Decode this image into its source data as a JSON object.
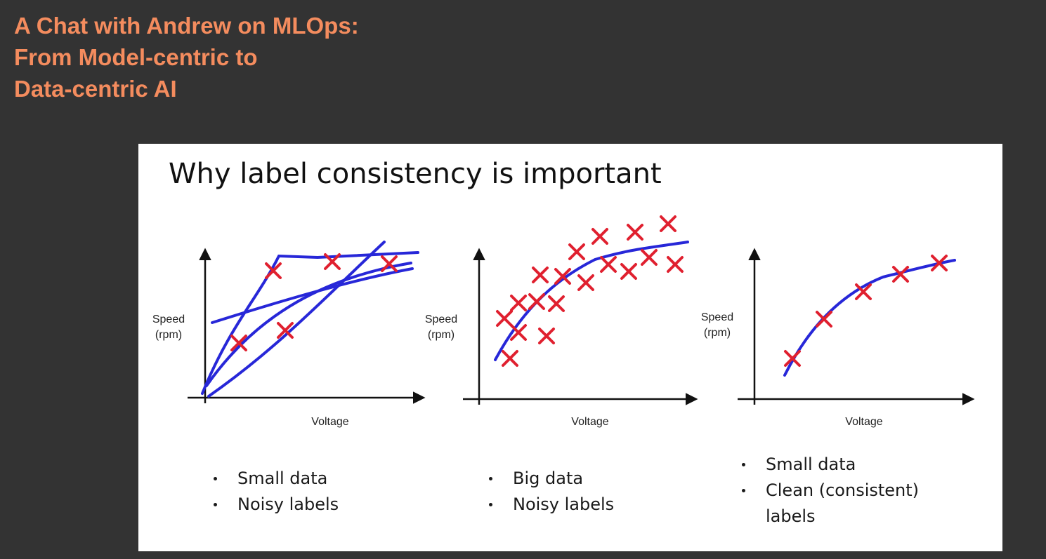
{
  "talk_title": {
    "line1": "A Chat with Andrew on MLOps:",
    "line2": "From Model-centric to",
    "line3": "Data-centric AI"
  },
  "slide": {
    "heading": "Why label consistency is important"
  },
  "colors": {
    "background": "#333333",
    "title_accent": "#F48C5E",
    "slide_background": "#FFFFFF",
    "curve_blue": "#2727D8",
    "marker_red": "#E0202F",
    "axis": "#111111"
  },
  "panels": [
    {
      "ylabel_line1": "Speed",
      "ylabel_line2": "(rpm)",
      "xlabel": "Voltage",
      "bullets": [
        "Small data",
        "Noisy labels"
      ]
    },
    {
      "ylabel_line1": "Speed",
      "ylabel_line2": "(rpm)",
      "xlabel": "Voltage",
      "bullets": [
        "Big data",
        "Noisy labels"
      ]
    },
    {
      "ylabel_line1": "Speed",
      "ylabel_line2": "(rpm)",
      "xlabel": "Voltage",
      "bullets": [
        "Small data",
        "Clean (consistent) labels"
      ]
    }
  ]
}
